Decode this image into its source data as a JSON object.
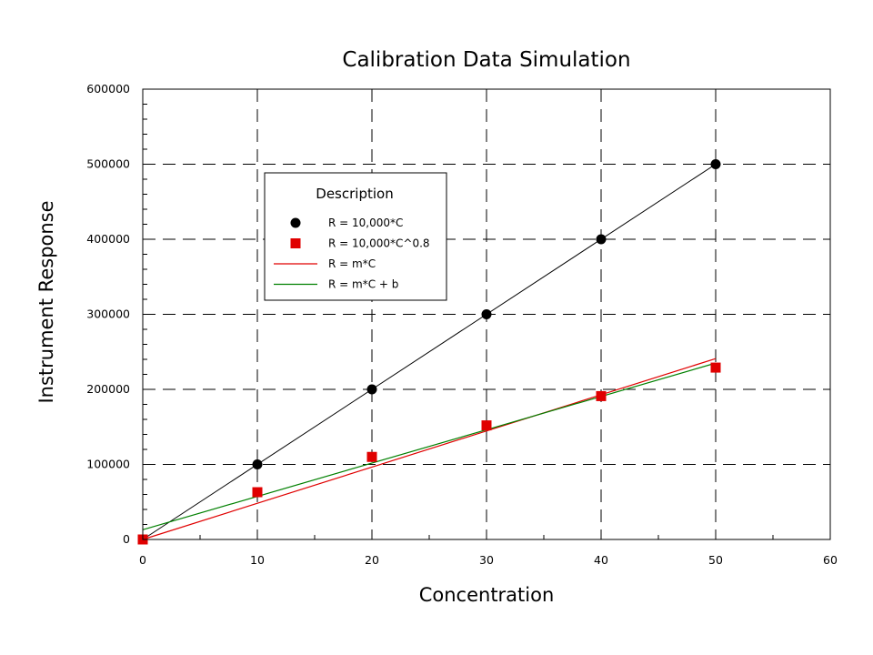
{
  "chart_data": {
    "type": "scatter",
    "title": "Calibration Data Simulation",
    "xlabel": "Concentration",
    "ylabel": "Instrument Response",
    "xlim": [
      0,
      60
    ],
    "ylim": [
      0,
      600000
    ],
    "xticks": [
      "0",
      "10",
      "20",
      "30",
      "40",
      "50",
      "60"
    ],
    "yticks": [
      "0",
      "100000",
      "200000",
      "300000",
      "400000",
      "500000",
      "600000"
    ],
    "grid": "dashed",
    "legend": {
      "title": "Description",
      "placement": "upper-left"
    },
    "series": [
      {
        "name": "R = 10,000*C",
        "kind": "points",
        "marker": "circle",
        "color": "#000000",
        "x": [
          0,
          10,
          20,
          30,
          40,
          50
        ],
        "y": [
          0,
          100000,
          200000,
          300000,
          400000,
          500000
        ]
      },
      {
        "name": "R = 10,000*C^0.8",
        "kind": "points",
        "marker": "square",
        "color": "#e00000",
        "x": [
          0,
          10,
          20,
          30,
          40,
          50
        ],
        "y": [
          0,
          63000,
          110000,
          152000,
          191000,
          229000
        ]
      },
      {
        "name": "R = m*C",
        "kind": "line",
        "color": "#e00000",
        "x": [
          0,
          50
        ],
        "y": [
          0,
          241000
        ]
      },
      {
        "name": "R = m*C + b",
        "kind": "line",
        "color": "#008000",
        "x": [
          0,
          50
        ],
        "y": [
          13000,
          235000
        ]
      }
    ],
    "extra_lines": [
      {
        "color": "#000000",
        "x": [
          0,
          50
        ],
        "y": [
          0,
          500000
        ]
      }
    ]
  }
}
